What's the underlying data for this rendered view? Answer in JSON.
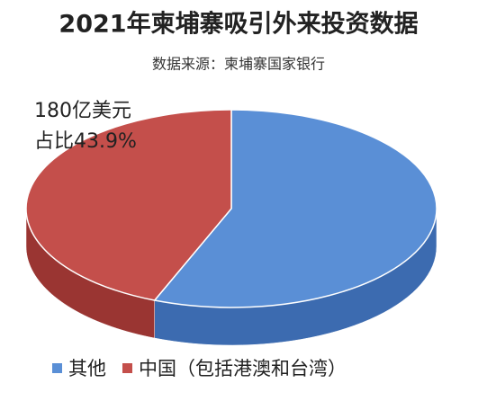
{
  "chart_data": {
    "type": "pie3d",
    "title": "2021年柬埔寨吸引外来投资数据",
    "subtitle": "数据来源：柬埔寨国家银行",
    "annotations": [
      "180亿美元",
      "占比43.9%"
    ],
    "categories": [
      "其他",
      "中国（包括港澳和台湾）"
    ],
    "values": [
      56.1,
      43.9
    ],
    "colors": [
      "#5a8fd6",
      "#c44f4b"
    ],
    "side_colors": [
      "#3c6bb0",
      "#9a3532"
    ],
    "legend": "bottom"
  }
}
